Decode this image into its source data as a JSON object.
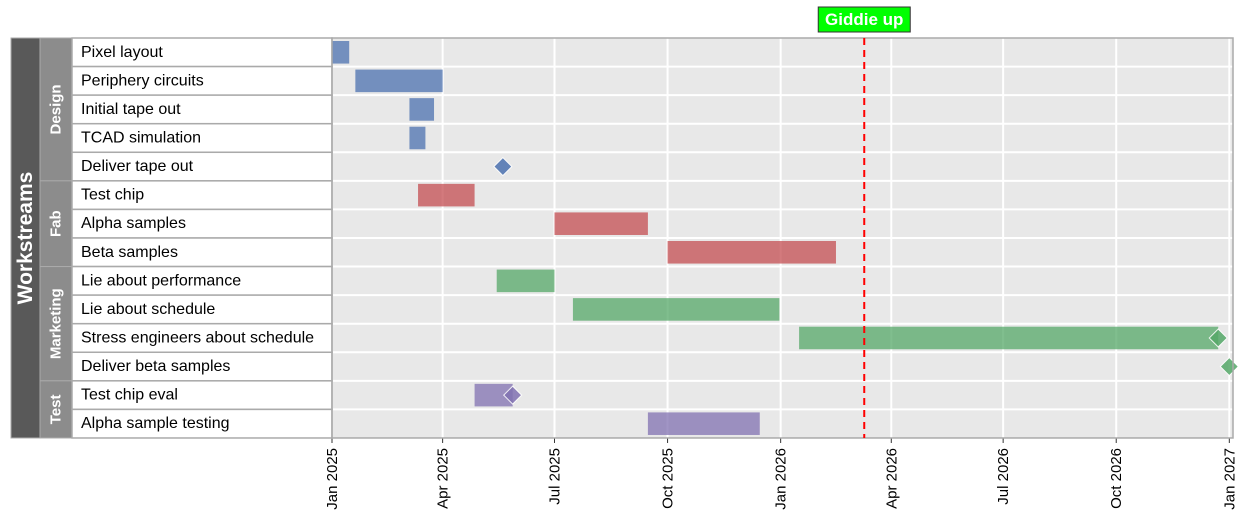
{
  "chart_data": {
    "type": "gantt",
    "title": "",
    "xlabel": "",
    "ylabel": "",
    "xlim": [
      "2025-01-01",
      "2027-01-04"
    ],
    "grid": true,
    "outer_label": "Workstreams",
    "groups": [
      {
        "name": "Design",
        "color": "#4c72b0"
      },
      {
        "name": "Fab",
        "color": "#c44e52"
      },
      {
        "name": "Marketing",
        "color": "#55a868"
      },
      {
        "name": "Test",
        "color": "#8172b2"
      }
    ],
    "tasks": [
      {
        "label": "Pixel layout",
        "group": "Design",
        "start": "2025-01-01",
        "end": "2025-01-15"
      },
      {
        "label": "Periphery circuits",
        "group": "Design",
        "start": "2025-01-20",
        "end": "2025-04-01"
      },
      {
        "label": "Initial tape out",
        "group": "Design",
        "start": "2025-03-05",
        "end": "2025-03-25"
      },
      {
        "label": "TCAD simulation",
        "group": "Design",
        "start": "2025-03-05",
        "end": "2025-03-18"
      },
      {
        "label": "Deliver tape out",
        "group": "Design",
        "milestone": "2025-05-20"
      },
      {
        "label": "Test chip",
        "group": "Fab",
        "start": "2025-03-12",
        "end": "2025-04-27"
      },
      {
        "label": "Alpha samples",
        "group": "Fab",
        "start": "2025-07-01",
        "end": "2025-09-15"
      },
      {
        "label": "Beta samples",
        "group": "Fab",
        "start": "2025-10-01",
        "end": "2026-02-15"
      },
      {
        "label": "Lie about performance",
        "group": "Marketing",
        "start": "2025-05-15",
        "end": "2025-07-01"
      },
      {
        "label": "Lie about schedule",
        "group": "Marketing",
        "start": "2025-07-16",
        "end": "2025-12-31"
      },
      {
        "label": "Stress engineers about schedule",
        "group": "Marketing",
        "start": "2026-01-16",
        "end": "2026-12-23",
        "milestone": "2026-12-23"
      },
      {
        "label": "Deliver beta samples",
        "group": "Marketing",
        "milestone": "2027-01-01"
      },
      {
        "label": "Test chip eval",
        "group": "Test",
        "start": "2025-04-27",
        "end": "2025-05-28",
        "milestone": "2025-05-28"
      },
      {
        "label": "Alpha sample testing",
        "group": "Test",
        "start": "2025-09-15",
        "end": "2025-12-15"
      }
    ],
    "x_ticks": [
      {
        "label": "Jan 2025",
        "date": "2025-01-01"
      },
      {
        "label": "Apr 2025",
        "date": "2025-04-01"
      },
      {
        "label": "Jul 2025",
        "date": "2025-07-01"
      },
      {
        "label": "Oct 2025",
        "date": "2025-10-01"
      },
      {
        "label": "Jan 2026",
        "date": "2026-01-01"
      },
      {
        "label": "Apr 2026",
        "date": "2026-04-01"
      },
      {
        "label": "Jul 2026",
        "date": "2026-07-01"
      },
      {
        "label": "Oct 2026",
        "date": "2026-10-01"
      },
      {
        "label": "Jan 2027",
        "date": "2027-01-01"
      }
    ],
    "today_marker": {
      "label": "Giddie up",
      "date": "2026-03-10",
      "color": "#ff0000",
      "label_bg": "#00ff00"
    }
  }
}
